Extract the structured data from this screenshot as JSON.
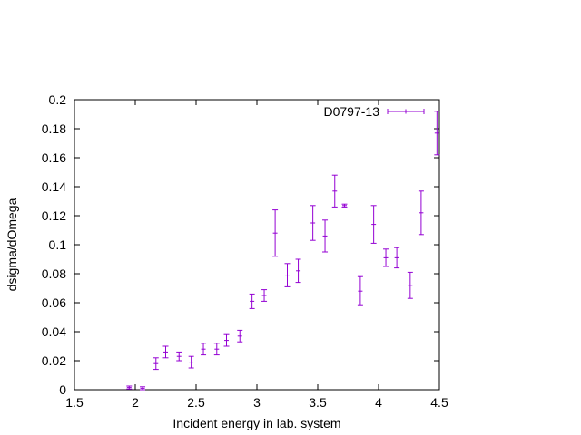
{
  "chart_data": {
    "type": "scatter",
    "xlabel": "Incident energy in lab. system",
    "ylabel": "dsigma/dOmega",
    "xlim": [
      1.5,
      4.5
    ],
    "ylim": [
      0,
      0.2
    ],
    "x_ticks": [
      1.5,
      2,
      2.5,
      3,
      3.5,
      4,
      4.5
    ],
    "x_tick_labels": [
      "1.5",
      "2",
      "2.5",
      "3",
      "3.5",
      "4",
      "4.5"
    ],
    "y_ticks": [
      0,
      0.02,
      0.04,
      0.06,
      0.08,
      0.1,
      0.12,
      0.14,
      0.16,
      0.18,
      0.2
    ],
    "y_tick_labels": [
      "0",
      "0.02",
      "0.04",
      "0.06",
      "0.08",
      "0.1",
      "0.12",
      "0.14",
      "0.16",
      "0.18",
      "0.2"
    ],
    "grid": false,
    "legend_position": "top-right",
    "series": [
      {
        "name": "D0797-13",
        "color": "#9400d3",
        "x": [
          1.95,
          2.06,
          2.17,
          2.25,
          2.36,
          2.46,
          2.56,
          2.67,
          2.75,
          2.86,
          2.96,
          3.06,
          3.15,
          3.25,
          3.34,
          3.46,
          3.56,
          3.64,
          3.72,
          3.85,
          3.96,
          4.06,
          4.15,
          4.26,
          4.35,
          4.48
        ],
        "y": [
          0.0015,
          0.001,
          0.018,
          0.026,
          0.023,
          0.019,
          0.028,
          0.028,
          0.034,
          0.037,
          0.061,
          0.065,
          0.108,
          0.079,
          0.082,
          0.115,
          0.106,
          0.137,
          0.127,
          0.068,
          0.114,
          0.091,
          0.091,
          0.072,
          0.122,
          0.177
        ],
        "err": [
          0.001,
          0.001,
          0.004,
          0.004,
          0.003,
          0.004,
          0.004,
          0.004,
          0.004,
          0.004,
          0.005,
          0.004,
          0.016,
          0.008,
          0.008,
          0.012,
          0.011,
          0.011,
          0.001,
          0.01,
          0.013,
          0.006,
          0.007,
          0.009,
          0.015,
          0.015
        ]
      }
    ]
  }
}
